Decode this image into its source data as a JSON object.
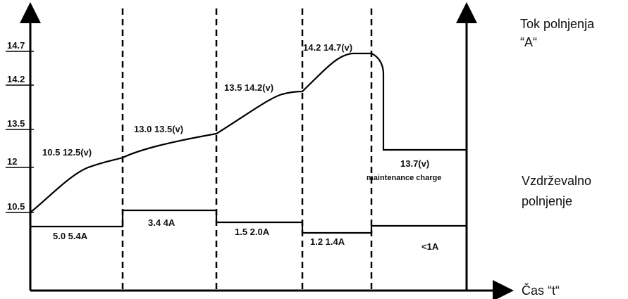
{
  "y_ticks": [
    "14.7",
    "14.2",
    "13.5",
    "12",
    "10.5"
  ],
  "voltage_labels": [
    "10.5   12.5(v)",
    "13.0   13.5(v)",
    "13.5   14.2(v)",
    "14.2     14.7(v)",
    "13.7(v)"
  ],
  "maintenance_label": "maintenance charge",
  "current_labels": [
    "5.0   5.4A",
    "3.4   4A",
    "1.5   2.0A",
    "1.2   1.4A",
    "<1A"
  ],
  "side_labels": {
    "current_title_line1": "Tok polnjenja",
    "current_title_line2": "“A“",
    "maintenance_line1": "Vzdrževalno",
    "maintenance_line2": "polnjenje",
    "time_axis": "Čas “t“"
  }
}
